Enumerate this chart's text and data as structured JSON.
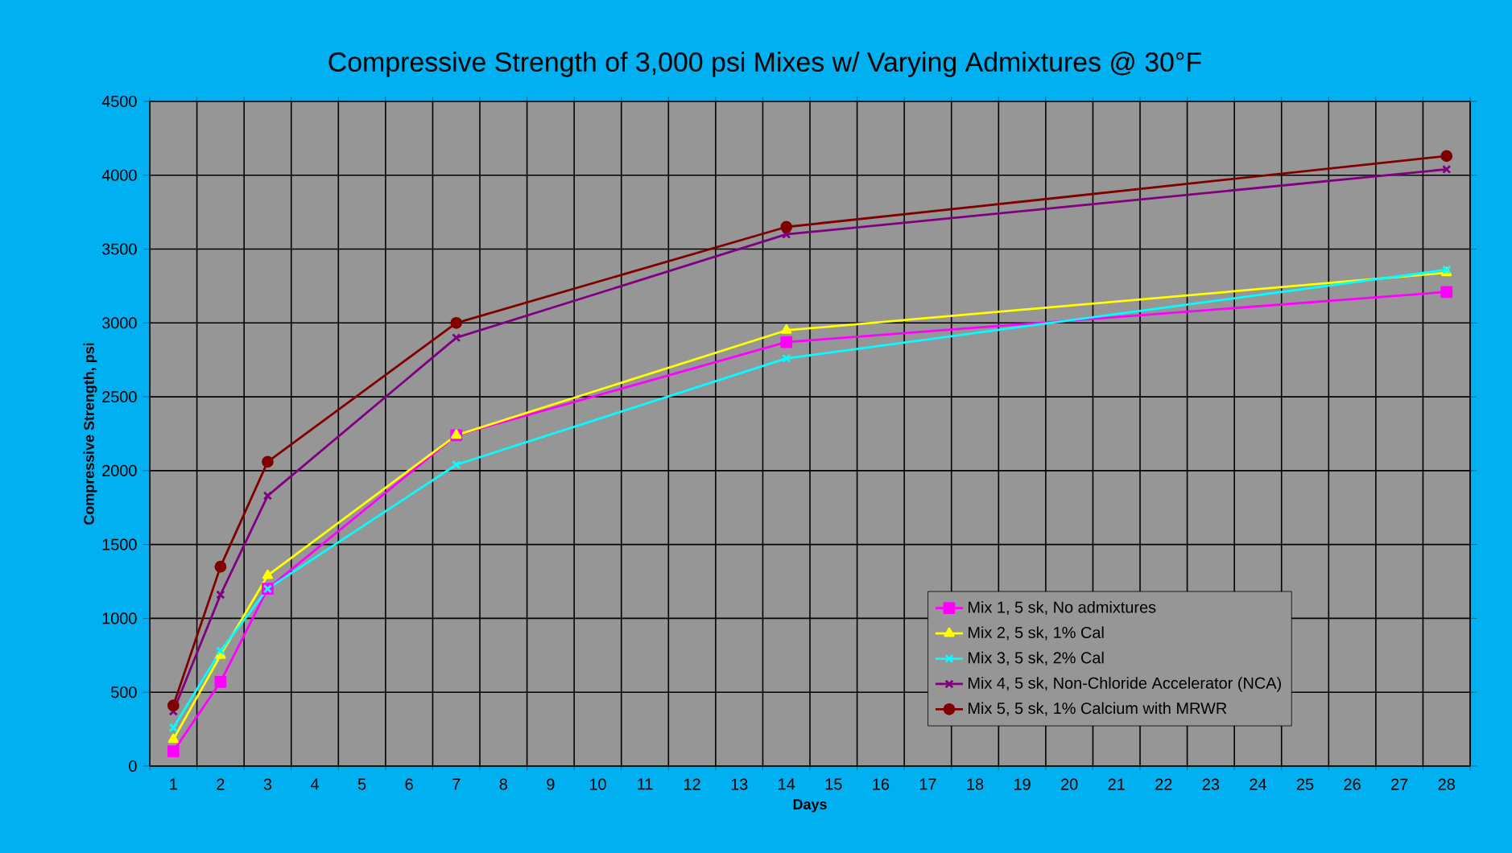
{
  "chart_data": {
    "type": "line",
    "title": "Compressive Strength of 3,000 psi Mixes w/ Varying Admixtures @ 30°F",
    "xlabel": "Days",
    "ylabel": "Compressive Strength, psi",
    "categories": [
      "1",
      "2",
      "3",
      "4",
      "5",
      "6",
      "7",
      "8",
      "9",
      "10",
      "11",
      "12",
      "13",
      "14",
      "15",
      "16",
      "17",
      "18",
      "19",
      "20",
      "21",
      "22",
      "23",
      "24",
      "25",
      "26",
      "27",
      "28"
    ],
    "series": [
      {
        "name": "Mix 1, 5 sk, No admixtures",
        "color": "#ff00ff",
        "marker": "square",
        "values": [
          100,
          570,
          1200,
          null,
          null,
          null,
          2240,
          null,
          null,
          null,
          null,
          null,
          null,
          2870,
          null,
          null,
          null,
          null,
          null,
          null,
          null,
          null,
          null,
          null,
          null,
          null,
          null,
          3210
        ]
      },
      {
        "name": "Mix 2, 5 sk, 1% Cal",
        "color": "#ffff00",
        "marker": "triangle",
        "values": [
          180,
          750,
          1290,
          null,
          null,
          null,
          2240,
          null,
          null,
          null,
          null,
          null,
          null,
          2950,
          null,
          null,
          null,
          null,
          null,
          null,
          null,
          null,
          null,
          null,
          null,
          null,
          null,
          3340
        ]
      },
      {
        "name": "Mix 3, 5 sk, 2% Cal",
        "color": "#00ffff",
        "marker": "cross",
        "values": [
          260,
          780,
          1200,
          null,
          null,
          null,
          2040,
          null,
          null,
          null,
          null,
          null,
          null,
          2760,
          null,
          null,
          null,
          null,
          null,
          null,
          null,
          null,
          null,
          null,
          null,
          null,
          null,
          3360
        ]
      },
      {
        "name": "Mix 4, 5 sk, Non-Chloride Accelerator (NCA)",
        "color": "#800080",
        "marker": "cross",
        "values": [
          370,
          1160,
          1830,
          null,
          null,
          null,
          2900,
          null,
          null,
          null,
          null,
          null,
          null,
          3600,
          null,
          null,
          null,
          null,
          null,
          null,
          null,
          null,
          null,
          null,
          null,
          null,
          null,
          4040
        ]
      },
      {
        "name": "Mix 5, 5 sk, 1% Calcium with MRWR",
        "color": "#800000",
        "marker": "circle",
        "values": [
          410,
          1350,
          2060,
          null,
          null,
          null,
          3000,
          null,
          null,
          null,
          null,
          null,
          null,
          3650,
          null,
          null,
          null,
          null,
          null,
          null,
          null,
          null,
          null,
          null,
          null,
          null,
          null,
          4130
        ]
      }
    ],
    "ylim": [
      0,
      4500
    ],
    "yticks": [
      0,
      500,
      1000,
      1500,
      2000,
      2500,
      3000,
      3500,
      4000,
      4500
    ],
    "grid": true,
    "legend": "bottom right",
    "line_style": "solid"
  }
}
